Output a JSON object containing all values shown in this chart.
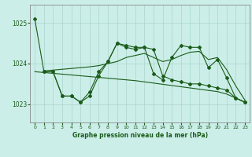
{
  "title": "Graphe pression niveau de la mer (hPa)",
  "background_color": "#cceee8",
  "grid_color": "#aad4ce",
  "line_color": "#1a5c1a",
  "xlim": [
    -0.5,
    23.5
  ],
  "ylim": [
    1022.55,
    1025.45
  ],
  "yticks": [
    1023,
    1024,
    1025
  ],
  "ytick_labels": [
    "1023",
    "1024",
    "1025"
  ],
  "xticks": [
    0,
    1,
    2,
    3,
    4,
    5,
    6,
    7,
    8,
    9,
    10,
    11,
    12,
    13,
    14,
    15,
    16,
    17,
    18,
    19,
    20,
    21,
    22,
    23
  ],
  "series": [
    {
      "x": [
        0,
        1,
        2,
        3,
        4,
        5,
        6,
        7,
        8,
        9,
        10,
        11,
        12,
        13,
        14,
        15,
        16,
        17,
        18,
        19,
        20,
        21,
        22,
        23
      ],
      "y": [
        1025.1,
        1023.8,
        1023.8,
        1023.2,
        1023.2,
        1023.05,
        1023.2,
        1023.7,
        1024.05,
        1024.5,
        1024.4,
        1024.35,
        1024.4,
        1024.35,
        1023.7,
        1023.6,
        1023.55,
        1023.5,
        1023.5,
        1023.45,
        1023.4,
        1023.35,
        1023.15,
        1023.05
      ],
      "marker": true
    },
    {
      "x": [
        0,
        1,
        2,
        3,
        4,
        5,
        6,
        7,
        8,
        9,
        10,
        11,
        12,
        13,
        14,
        15,
        16,
        17,
        18,
        19,
        20,
        21,
        22,
        23
      ],
      "y": [
        1023.8,
        1023.78,
        1023.76,
        1023.74,
        1023.72,
        1023.7,
        1023.68,
        1023.66,
        1023.64,
        1023.62,
        1023.6,
        1023.58,
        1023.55,
        1023.52,
        1023.49,
        1023.46,
        1023.43,
        1023.4,
        1023.37,
        1023.34,
        1023.31,
        1023.25,
        1023.15,
        1023.05
      ],
      "marker": false
    },
    {
      "x": [
        1,
        2,
        3,
        4,
        5,
        6,
        7,
        8,
        9,
        10,
        11,
        12,
        13,
        14,
        15,
        16,
        17,
        18,
        19,
        20,
        21,
        22,
        23
      ],
      "y": [
        1023.8,
        1023.8,
        1023.2,
        1023.2,
        1023.05,
        1023.3,
        1023.8,
        1024.05,
        1024.5,
        1024.45,
        1024.4,
        1024.4,
        1023.75,
        1023.6,
        1024.15,
        1024.45,
        1024.4,
        1024.4,
        1023.9,
        1024.1,
        1023.65,
        1023.15,
        1023.05
      ],
      "marker": true
    },
    {
      "x": [
        1,
        2,
        3,
        4,
        5,
        6,
        7,
        8,
        9,
        10,
        11,
        12,
        13,
        14,
        15,
        16,
        17,
        18,
        19,
        20,
        21,
        22,
        23
      ],
      "y": [
        1023.82,
        1023.84,
        1023.86,
        1023.88,
        1023.9,
        1023.92,
        1023.95,
        1024.0,
        1024.05,
        1024.15,
        1024.2,
        1024.25,
        1024.15,
        1024.05,
        1024.1,
        1024.2,
        1024.28,
        1024.3,
        1024.1,
        1024.15,
        1023.85,
        1023.45,
        1023.1
      ],
      "marker": false
    }
  ]
}
